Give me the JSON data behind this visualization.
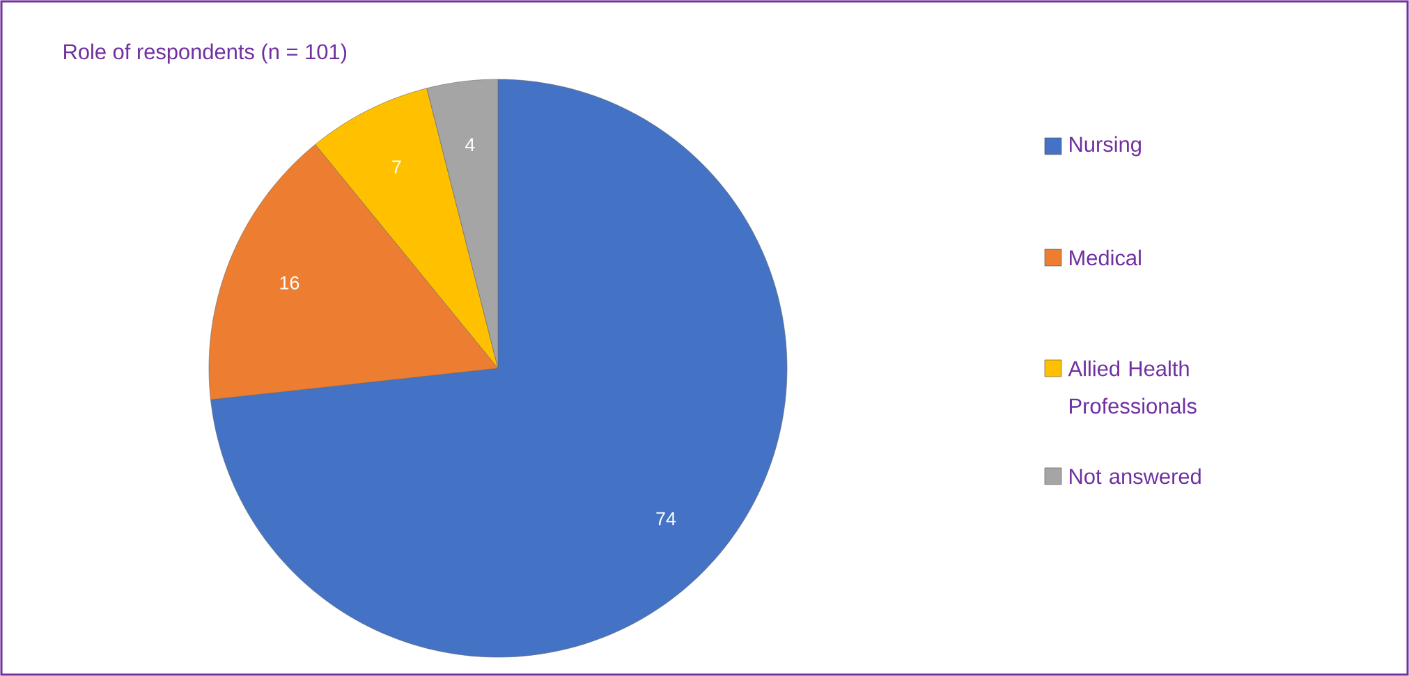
{
  "chart_data": {
    "type": "pie",
    "title": "Role of respondents (n = 101)",
    "categories": [
      "Nursing",
      "Medical",
      "Allied Health Professionals",
      "Not answered"
    ],
    "values": [
      74,
      16,
      7,
      4
    ],
    "colors": [
      "#4472c4",
      "#ed7d31",
      "#ffc000",
      "#a5a5a5"
    ],
    "data_labels": true,
    "legend": "right"
  }
}
